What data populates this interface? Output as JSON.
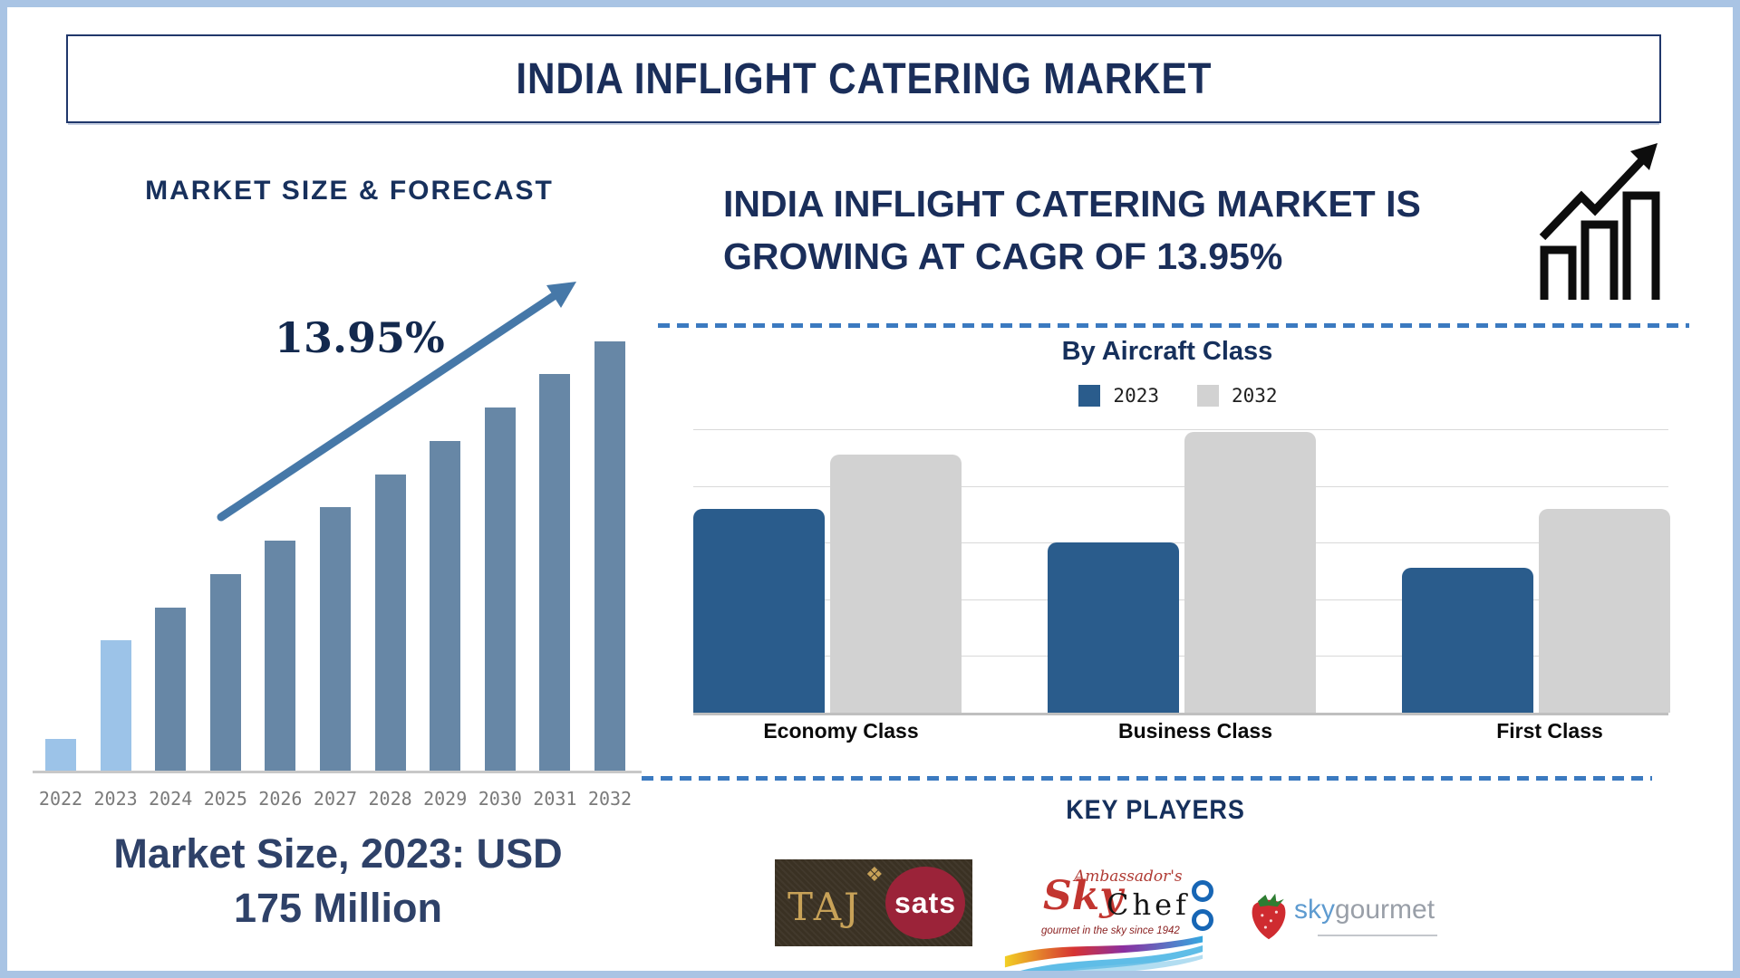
{
  "title_banner": {
    "text": "INDIA INFLIGHT CATERING MARKET"
  },
  "left_section": {
    "heading": "MARKET SIZE & FORECAST"
  },
  "right_section": {
    "heading_line1": "INDIA INFLIGHT CATERING MARKET IS",
    "heading_line2": "GROWING AT CAGR OF 13.95%",
    "growth_icon": "growth-chart-icon",
    "key_players": {
      "heading": "KEY PLAYERS",
      "logos": [
        {
          "name": "TajSATS",
          "text_taj": "TAJ",
          "text_sats": "sats",
          "ornament_icon": "diamond-ornament-icon",
          "box_color": "#3a3123",
          "ellipse_color": "#9b2339",
          "gold_color": "#c8a258"
        },
        {
          "name": "Ambassador's SkyChef",
          "text_ambassadors": "Ambassador's",
          "text_sky": "Sky",
          "text_chef": "Chef",
          "trademark": "™",
          "tagline": "gourmet in the sky since 1942"
        },
        {
          "name": "skygourmet",
          "text_sky": "sky",
          "text_gourmet": "gourmet",
          "icon": "strawberry-icon"
        }
      ]
    }
  },
  "chart_data": [
    {
      "type": "bar",
      "title": "MARKET SIZE & FORECAST",
      "categories": [
        "2022",
        "2023",
        "2024",
        "2025",
        "2026",
        "2027",
        "2028",
        "2029",
        "2030",
        "2031",
        "2032"
      ],
      "values": [
        7.6,
        30.5,
        38.1,
        45.9,
        53.7,
        61.5,
        69.1,
        76.8,
        84.6,
        92.4,
        100
      ],
      "values_note": "relative bar heights in percent of tallest bar (2032 = 100); no numeric axis shown",
      "highlight_categories": [
        "2022",
        "2023"
      ],
      "highlight_color": "#9cc3e8",
      "bar_color": "#6787a6",
      "annotation": "13.95%",
      "caption_line1": "Market Size, 2023: USD",
      "caption_line2": "175 Million",
      "xlabel": "",
      "ylabel": "",
      "grid": false,
      "arrow_color": "#4678a8",
      "axis_color": "#c8c8c8"
    },
    {
      "type": "bar",
      "title": "By Aircraft Class",
      "categories": [
        "Economy Class",
        "Business Class",
        "First Class"
      ],
      "series": [
        {
          "name": "2023",
          "color": "#2a5c8c",
          "values": [
            3.6,
            3.0,
            2.55
          ]
        },
        {
          "name": "2032",
          "color": "#d2d2d2",
          "values": [
            4.55,
            4.95,
            3.6
          ]
        }
      ],
      "ylim": [
        0,
        5
      ],
      "values_note": "relative units estimated from gridlines (1 unit per gridline gap); no numeric axis labels shown",
      "grid": true,
      "legend_position": "top"
    }
  ]
}
